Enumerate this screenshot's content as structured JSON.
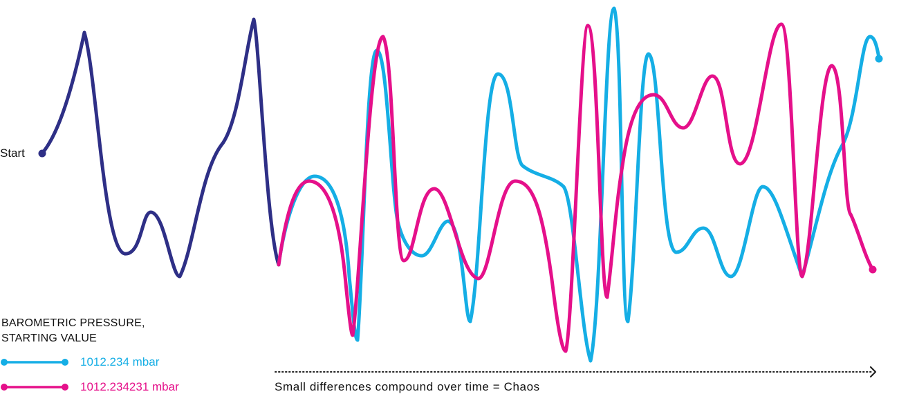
{
  "start_label": "Start",
  "legend": {
    "title_line1": "BAROMETRIC PRESSURE,",
    "title_line2": "STARTING VALUE",
    "items": [
      {
        "label": "1012.234 mbar",
        "color": "#15aee5"
      },
      {
        "label": "1012.234231 mbar",
        "color": "#e5108a"
      }
    ]
  },
  "shared_color": "#2e2f86",
  "caption": "Small differences compound over time = Chaos"
}
